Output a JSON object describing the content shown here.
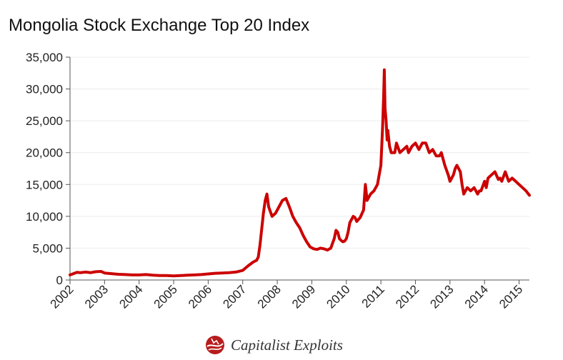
{
  "chart_data": {
    "type": "line",
    "title": "Mongolia Stock Exchange Top 20 Index",
    "xlabel": "",
    "ylabel": "",
    "xlim": [
      2002,
      2015.3
    ],
    "ylim": [
      0,
      35000
    ],
    "yticks": [
      "0",
      "5,000",
      "10,000",
      "15,000",
      "20,000",
      "25,000",
      "30,000",
      "35,000"
    ],
    "ytick_values": [
      0,
      5000,
      10000,
      15000,
      20000,
      25000,
      30000,
      35000
    ],
    "xticks": [
      "2002",
      "2003",
      "2004",
      "2005",
      "2006",
      "2007",
      "2008",
      "2009",
      "2010",
      "2011",
      "2012",
      "2013",
      "2014",
      "2015"
    ],
    "xtick_values": [
      2002,
      2003,
      2004,
      2005,
      2006,
      2007,
      2008,
      2009,
      2010,
      2011,
      2012,
      2013,
      2014,
      2015
    ],
    "grid": true,
    "legend": "none",
    "series": [
      {
        "color": "#cc0000",
        "x": [
          2002.0,
          2002.1,
          2002.2,
          2002.3,
          2002.45,
          2002.6,
          2002.75,
          2002.9,
          2003.0,
          2003.2,
          2003.4,
          2003.6,
          2003.8,
          2004.0,
          2004.2,
          2004.4,
          2004.6,
          2004.8,
          2005.0,
          2005.2,
          2005.4,
          2005.6,
          2005.8,
          2006.0,
          2006.2,
          2006.4,
          2006.6,
          2006.8,
          2007.0,
          2007.15,
          2007.3,
          2007.4,
          2007.45,
          2007.5,
          2007.55,
          2007.6,
          2007.65,
          2007.7,
          2007.75,
          2007.85,
          2007.95,
          2008.05,
          2008.15,
          2008.25,
          2008.35,
          2008.45,
          2008.55,
          2008.65,
          2008.75,
          2008.85,
          2008.95,
          2009.05,
          2009.15,
          2009.25,
          2009.35,
          2009.45,
          2009.55,
          2009.65,
          2009.7,
          2009.75,
          2009.8,
          2009.85,
          2009.9,
          2009.95,
          2010.0,
          2010.05,
          2010.1,
          2010.15,
          2010.2,
          2010.25,
          2010.3,
          2010.35,
          2010.4,
          2010.5,
          2010.55,
          2010.6,
          2010.65,
          2010.7,
          2010.8,
          2010.9,
          2011.0,
          2011.05,
          2011.08,
          2011.1,
          2011.12,
          2011.15,
          2011.18,
          2011.2,
          2011.25,
          2011.3,
          2011.4,
          2011.45,
          2011.55,
          2011.65,
          2011.75,
          2011.8,
          2011.9,
          2012.0,
          2012.1,
          2012.2,
          2012.3,
          2012.4,
          2012.5,
          2012.6,
          2012.7,
          2012.75,
          2012.85,
          2012.95,
          2013.0,
          2013.1,
          2013.15,
          2013.2,
          2013.3,
          2013.35,
          2013.4,
          2013.5,
          2013.6,
          2013.7,
          2013.8,
          2013.85,
          2013.9,
          2014.0,
          2014.05,
          2014.1,
          2014.2,
          2014.3,
          2014.4,
          2014.45,
          2014.5,
          2014.6,
          2014.7,
          2014.8,
          2014.9,
          2015.0,
          2015.1,
          2015.2,
          2015.3
        ],
        "y": [
          800,
          1000,
          1200,
          1150,
          1250,
          1150,
          1300,
          1350,
          1100,
          1000,
          900,
          850,
          800,
          800,
          850,
          750,
          700,
          700,
          650,
          700,
          750,
          800,
          850,
          950,
          1050,
          1100,
          1150,
          1250,
          1500,
          2200,
          2800,
          3100,
          3600,
          5500,
          8000,
          10500,
          12500,
          13500,
          11500,
          10000,
          10500,
          11500,
          12500,
          12800,
          11500,
          10000,
          9000,
          8200,
          7000,
          6000,
          5200,
          4900,
          4800,
          5000,
          4900,
          4700,
          5000,
          6500,
          7800,
          7500,
          6500,
          6200,
          6000,
          6100,
          6500,
          7500,
          9000,
          9500,
          10000,
          9800,
          9200,
          9500,
          9800,
          11000,
          15000,
          12500,
          13000,
          13500,
          14000,
          15000,
          18000,
          24000,
          29000,
          33000,
          27000,
          25000,
          22000,
          23500,
          21000,
          20000,
          20000,
          21500,
          20000,
          20500,
          21000,
          20000,
          21000,
          21500,
          20500,
          21500,
          21500,
          20000,
          20500,
          19500,
          19500,
          20000,
          18000,
          16500,
          15500,
          16500,
          17500,
          18000,
          17000,
          15000,
          13500,
          14500,
          14000,
          14500,
          13500,
          14000,
          14000,
          15500,
          14500,
          16000,
          16500,
          17000,
          15800,
          16000,
          15500,
          17000,
          15500,
          16000,
          15500,
          15000,
          14500,
          14000,
          13300
        ]
      }
    ]
  },
  "brand": {
    "name": "Capitalist Exploits",
    "logo_icon": "globe-logo-icon"
  }
}
